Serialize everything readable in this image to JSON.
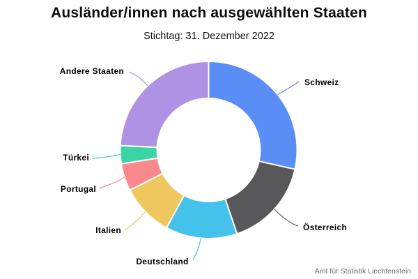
{
  "chart_data": {
    "type": "donut",
    "title": "Ausländer/innen nach ausgewählten Staaten",
    "subtitle": "Stichtag: 31. Dezember 2022",
    "source": "Amt für Statistik Liechtenstein",
    "categories": [
      "Schweiz",
      "Österreich",
      "Deutschland",
      "Italien",
      "Portugal",
      "Türkei",
      "Andere Staaten"
    ],
    "values": [
      28.5,
      16.3,
      13.1,
      9.6,
      5.0,
      3.3,
      24.2
    ],
    "values_unit": "percent share, estimated from arc angles (no numeric labels shown)",
    "colors": [
      "#5B8DF7",
      "#58585A",
      "#45C2EC",
      "#F0C75E",
      "#F9898C",
      "#3BD4A4",
      "#B092E5"
    ],
    "start_angle_deg": 0,
    "direction": "clockwise",
    "legend": "none",
    "label_style": "category names outside the ring, connected with curved leader lines in slice color"
  }
}
